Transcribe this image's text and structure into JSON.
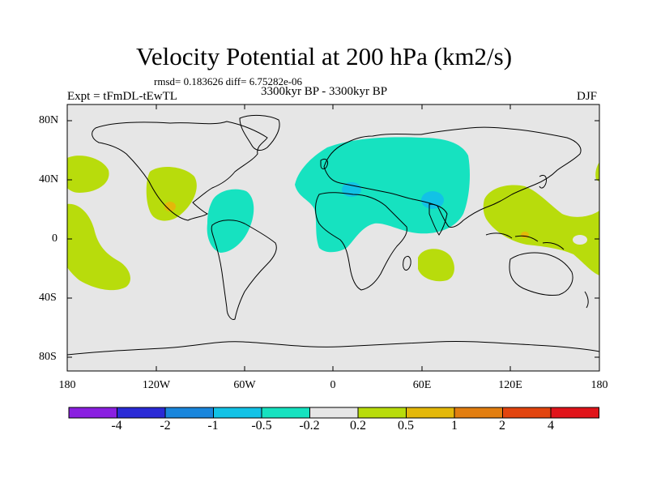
{
  "title": "Velocity Potential at 200 hPa (km2/s)",
  "stats": "rmsd= 0.183626 diff= 6.75282e-06",
  "left_label": "Expt = tFmDL-tEwTL",
  "center_label": "3300kyr BP - 3300kyr BP",
  "right_label": "DJF",
  "lat_ticks": [
    "80N",
    "40N",
    "0",
    "40S",
    "80S"
  ],
  "lon_ticks": [
    "180",
    "120W",
    "60W",
    "0",
    "60E",
    "120E",
    "180"
  ],
  "colorbar": {
    "colors": [
      "#8a1fe0",
      "#2a2ad6",
      "#1a86dc",
      "#12c2e6",
      "#16e2c0",
      "#e6e6e6",
      "#b8dc0c",
      "#e4b80a",
      "#e27e10",
      "#e2440e",
      "#e0141a"
    ],
    "labels": [
      "-4",
      "-2",
      "-1",
      "-0.5",
      "-0.2",
      "0.2",
      "0.5",
      "1",
      "2",
      "4"
    ]
  },
  "colors": {
    "background": "#e6e6e6",
    "positive_weak": "#b8dc0c",
    "negative_weak": "#16e2c0",
    "negative_mid": "#12c2e6",
    "positive_mid": "#e4b80a",
    "coast": "#000000"
  }
}
